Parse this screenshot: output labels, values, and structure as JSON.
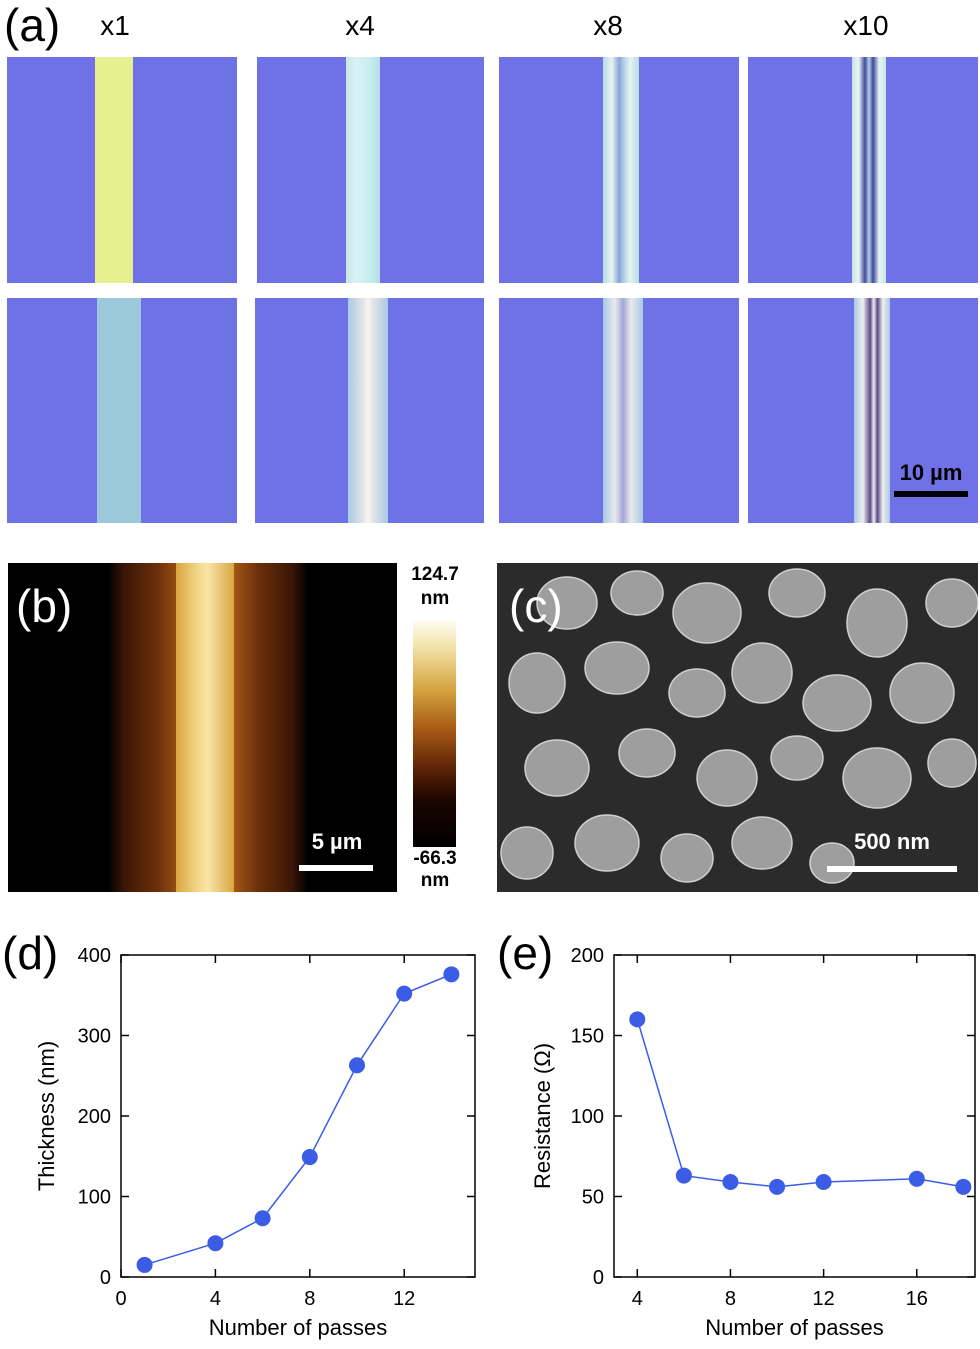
{
  "panel_a": {
    "label": "(a)",
    "columns": [
      {
        "mag": "x1"
      },
      {
        "mag": "x4"
      },
      {
        "mag": "x8"
      },
      {
        "mag": "x10"
      }
    ],
    "scale_bar": "10 µm"
  },
  "panel_b": {
    "label": "(b)",
    "scale_bar": "5 µm",
    "colorbar_max": "124.7",
    "colorbar_max_unit": "nm",
    "colorbar_min": "-66.3",
    "colorbar_min_unit": "nm"
  },
  "panel_c": {
    "label": "(c)",
    "scale_bar": "500 nm"
  },
  "colors": {
    "substrate": "#6f72e6",
    "marker": "#3b5de6",
    "line": "#3b5de6"
  },
  "chart_data": [
    {
      "panel": "(d)",
      "type": "line",
      "xlabel": "Number of passes",
      "ylabel": "Thickness (nm)",
      "xlim": [
        0,
        15
      ],
      "ylim": [
        0,
        400
      ],
      "xticks": [
        0,
        4,
        8,
        12
      ],
      "yticks": [
        0,
        100,
        200,
        300,
        400
      ],
      "x": [
        1,
        4,
        6,
        8,
        10,
        12,
        14
      ],
      "y": [
        15,
        42,
        73,
        149,
        263,
        352,
        376
      ],
      "grid": false
    },
    {
      "panel": "(e)",
      "type": "line",
      "xlabel": "Number of passes",
      "ylabel": "Resistance (Ω)",
      "xlim": [
        3,
        18.5
      ],
      "ylim": [
        0,
        200
      ],
      "xticks": [
        4,
        8,
        12,
        16
      ],
      "yticks": [
        0,
        50,
        100,
        150,
        200
      ],
      "x": [
        4,
        6,
        8,
        10,
        12,
        16,
        18
      ],
      "y": [
        160,
        63,
        59,
        56,
        59,
        61,
        56
      ],
      "grid": false
    }
  ]
}
